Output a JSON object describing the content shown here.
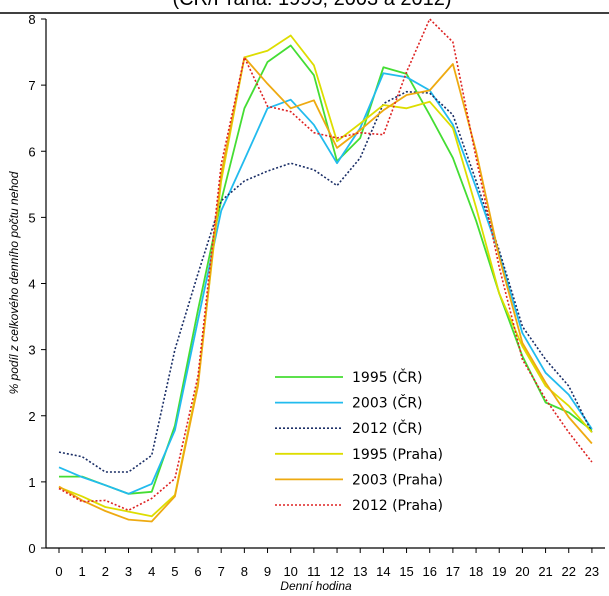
{
  "chart_data": {
    "type": "line",
    "title": "(ČR/Praha: 1995, 2003 a 2012)",
    "xlabel": "Denní hodina",
    "ylabel": "% podíl z celkového denního počtu nehod",
    "categories": [
      "0",
      "1",
      "2",
      "3",
      "4",
      "5",
      "6",
      "7",
      "8",
      "9",
      "10",
      "11",
      "12",
      "13",
      "14",
      "15",
      "16",
      "17",
      "18",
      "19",
      "20",
      "21",
      "22",
      "23"
    ],
    "ylim": [
      0,
      8
    ],
    "yticks": [
      "0",
      "1",
      "2",
      "3",
      "4",
      "5",
      "6",
      "7",
      "8"
    ],
    "grid": false,
    "legend_position": "bottom-center",
    "series": [
      {
        "name": "1995 (ČR)",
        "color": "#44dd33",
        "dash": "solid",
        "values": [
          1.08,
          1.08,
          0.95,
          0.82,
          0.85,
          1.85,
          3.6,
          5.25,
          6.65,
          7.35,
          7.6,
          7.15,
          5.85,
          6.2,
          7.27,
          7.17,
          6.55,
          5.9,
          4.95,
          3.85,
          2.9,
          2.2,
          2.05,
          1.78
        ]
      },
      {
        "name": "2003 (ČR)",
        "color": "#22bbee",
        "dash": "solid",
        "values": [
          1.22,
          1.07,
          0.95,
          0.82,
          0.97,
          1.78,
          3.45,
          5.1,
          5.87,
          6.65,
          6.78,
          6.4,
          5.82,
          6.35,
          7.18,
          7.12,
          6.92,
          6.4,
          5.45,
          4.45,
          3.25,
          2.65,
          2.32,
          1.8
        ]
      },
      {
        "name": "2012 (ČR)",
        "color": "#1a2e66",
        "dash": "dot",
        "values": [
          1.45,
          1.38,
          1.15,
          1.15,
          1.4,
          3.0,
          4.15,
          5.25,
          5.55,
          5.7,
          5.82,
          5.72,
          5.48,
          5.9,
          6.72,
          6.9,
          6.88,
          6.55,
          5.55,
          4.5,
          3.35,
          2.85,
          2.45,
          1.75
        ]
      },
      {
        "name": "1995 (Praha)",
        "color": "#dddd00",
        "dash": "solid",
        "values": [
          0.92,
          0.78,
          0.62,
          0.55,
          0.48,
          0.8,
          2.5,
          5.55,
          7.42,
          7.52,
          7.75,
          7.3,
          6.15,
          6.42,
          6.7,
          6.65,
          6.75,
          6.35,
          5.15,
          3.85,
          3.05,
          2.45,
          2.15,
          1.75
        ]
      },
      {
        "name": "2003 (Praha)",
        "color": "#eeaa11",
        "dash": "solid",
        "values": [
          0.93,
          0.72,
          0.56,
          0.43,
          0.4,
          0.78,
          2.45,
          5.65,
          7.42,
          7.02,
          6.65,
          6.77,
          6.05,
          6.32,
          6.62,
          6.85,
          6.92,
          7.32,
          6.0,
          4.4,
          3.1,
          2.5,
          1.98,
          1.58
        ]
      },
      {
        "name": "2012 (Praha)",
        "color": "#dd2222",
        "dash": "dot",
        "values": [
          0.9,
          0.7,
          0.72,
          0.57,
          0.75,
          1.05,
          2.6,
          5.8,
          7.42,
          6.68,
          6.6,
          6.28,
          6.2,
          6.28,
          6.25,
          7.2,
          8.0,
          7.65,
          5.9,
          4.25,
          2.85,
          2.25,
          1.75,
          1.3
        ]
      }
    ]
  }
}
